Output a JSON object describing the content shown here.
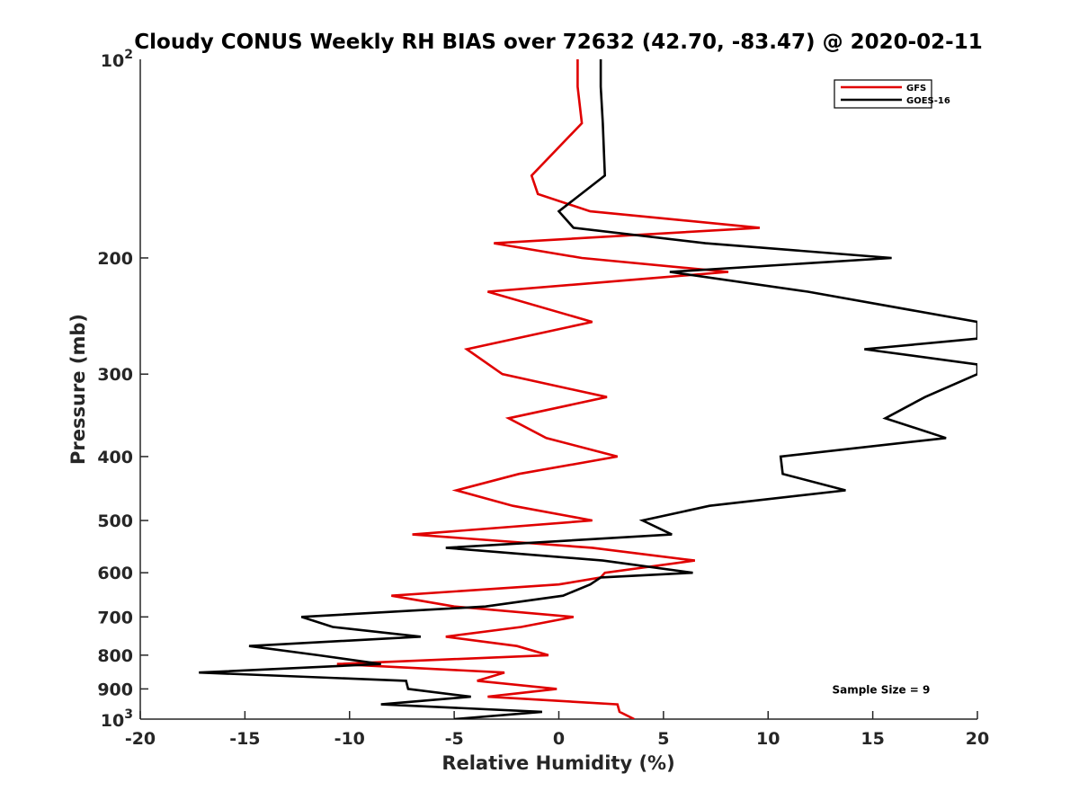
{
  "chart_data": {
    "type": "line",
    "title": "Cloudy CONUS Weekly RH BIAS over 72632 (42.70, -83.47) @ 2020-02-11",
    "xlabel": "Relative Humidity (%)",
    "ylabel": "Pressure (mb)",
    "xlim": [
      -20,
      20
    ],
    "ylim": [
      100,
      1000
    ],
    "y_scale": "log",
    "y_reversed": true,
    "grid": false,
    "legend_position": "top-right",
    "x_ticks": [
      -20,
      -15,
      -10,
      -5,
      0,
      5,
      10,
      15,
      20
    ],
    "x_tick_labels": [
      "-20",
      "-15",
      "-10",
      "-5",
      "0",
      "5",
      "10",
      "15",
      "20"
    ],
    "y_ticks": [
      200,
      300,
      400,
      500,
      600,
      700,
      800,
      900
    ],
    "y_tick_labels": [
      "200",
      "300",
      "400",
      "500",
      "600",
      "700",
      "800",
      "900"
    ],
    "y_end_labels": [
      {
        "value": 100,
        "base": "10",
        "exp": "2"
      },
      {
        "value": 1000,
        "base": "10",
        "exp": "3"
      }
    ],
    "series": [
      {
        "name": "GFS",
        "color": "#e00000",
        "points": [
          [
            3.6,
            1000
          ],
          [
            2.9,
            975
          ],
          [
            2.8,
            950
          ],
          [
            -3.4,
            925
          ],
          [
            -0.1,
            900
          ],
          [
            -3.9,
            875
          ],
          [
            -2.6,
            850
          ],
          [
            -10.6,
            825
          ],
          [
            -0.5,
            800
          ],
          [
            -2.0,
            775
          ],
          [
            -5.4,
            750
          ],
          [
            -1.8,
            725
          ],
          [
            0.7,
            700
          ],
          [
            -5.0,
            675
          ],
          [
            -8.0,
            650
          ],
          [
            0.0,
            625
          ],
          [
            2.0,
            610
          ],
          [
            2.2,
            600
          ],
          [
            6.5,
            575
          ],
          [
            1.6,
            550
          ],
          [
            -7.0,
            525
          ],
          [
            1.6,
            500
          ],
          [
            -2.2,
            475
          ],
          [
            -4.9,
            450
          ],
          [
            -1.9,
            425
          ],
          [
            2.8,
            400
          ],
          [
            -0.6,
            375
          ],
          [
            -2.4,
            350
          ],
          [
            2.3,
            325
          ],
          [
            -2.7,
            300
          ],
          [
            -4.4,
            275
          ],
          [
            1.6,
            250
          ],
          [
            -3.4,
            225
          ],
          [
            8.1,
            210
          ],
          [
            1.1,
            200
          ],
          [
            -3.1,
            190
          ],
          [
            9.6,
            180
          ],
          [
            1.5,
            170
          ],
          [
            -1.0,
            160
          ],
          [
            -1.3,
            150
          ],
          [
            1.1,
            125
          ],
          [
            0.9,
            110
          ],
          [
            0.9,
            100
          ]
        ]
      },
      {
        "name": "GOES-16",
        "color": "#000000",
        "points": [
          [
            -5.0,
            1000
          ],
          [
            -0.8,
            975
          ],
          [
            -8.5,
            950
          ],
          [
            -4.2,
            925
          ],
          [
            -7.2,
            900
          ],
          [
            -7.3,
            875
          ],
          [
            -17.2,
            850
          ],
          [
            -8.5,
            825
          ],
          [
            -11.5,
            800
          ],
          [
            -14.8,
            775
          ],
          [
            -6.6,
            750
          ],
          [
            -10.8,
            725
          ],
          [
            -12.3,
            700
          ],
          [
            -3.5,
            675
          ],
          [
            0.2,
            650
          ],
          [
            1.5,
            625
          ],
          [
            2.0,
            610
          ],
          [
            6.4,
            600
          ],
          [
            2.1,
            575
          ],
          [
            -5.4,
            550
          ],
          [
            5.4,
            525
          ],
          [
            4.0,
            500
          ],
          [
            7.2,
            475
          ],
          [
            13.7,
            450
          ],
          [
            10.7,
            425
          ],
          [
            10.6,
            400
          ],
          [
            18.5,
            375
          ],
          [
            15.6,
            350
          ],
          [
            17.5,
            325
          ],
          [
            20.0,
            300
          ],
          [
            20.0,
            290
          ],
          [
            14.6,
            275
          ],
          [
            20.0,
            265
          ],
          [
            20.0,
            250
          ],
          [
            11.9,
            225
          ],
          [
            5.3,
            210
          ],
          [
            15.9,
            200
          ],
          [
            7.0,
            190
          ],
          [
            0.7,
            180
          ],
          [
            0.0,
            170
          ],
          [
            2.2,
            150
          ],
          [
            2.1,
            125
          ],
          [
            2.0,
            110
          ],
          [
            2.0,
            100
          ]
        ]
      }
    ],
    "annotations": [
      {
        "text": "Sample Size = 9",
        "x": 15.4,
        "y": 900
      }
    ]
  }
}
